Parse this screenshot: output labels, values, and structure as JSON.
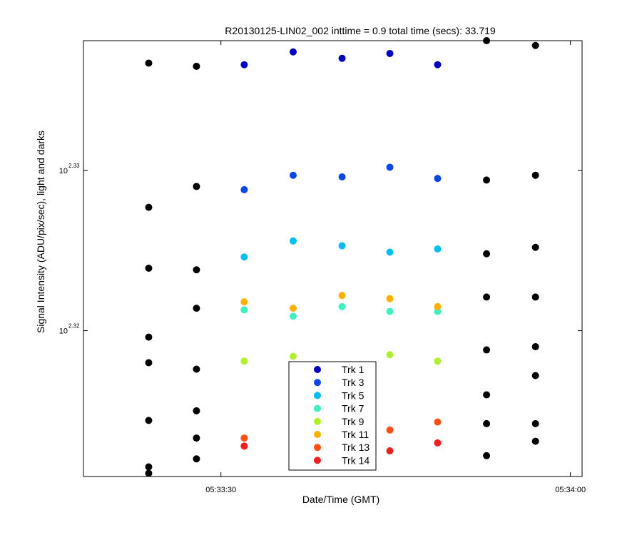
{
  "chart_data": {
    "type": "scatter",
    "title": "R20130125-LIN02_002 inttime = 0.9 total time (secs): 33.719",
    "xlabel": "Date/Time (GMT)",
    "ylabel": "Signal Intensity (ADU/pix/sec), light and darks",
    "x_ticks": [
      {
        "label": "05:33:30",
        "value": 30
      },
      {
        "label": "05:34:00",
        "value": 60
      }
    ],
    "y_ticks": [
      {
        "base": "10",
        "exp": "2.32",
        "value": 2.32
      },
      {
        "base": "10",
        "exp": "2.33",
        "value": 2.33
      }
    ],
    "xlim": [
      18.2,
      61.0
    ],
    "ylim": [
      2.3109,
      2.3381
    ],
    "y_scale": "log",
    "legend_position": "bottom-center",
    "series": [
      {
        "name": "Trk 1",
        "color": "#0000BF",
        "points": [
          [
            32,
            2.3366
          ],
          [
            36.2,
            2.3374
          ],
          [
            40.4,
            2.337
          ],
          [
            44.5,
            2.3373
          ],
          [
            48.6,
            2.3366
          ]
        ]
      },
      {
        "name": "Trk 3",
        "color": "#0F46E6",
        "points": [
          [
            32,
            2.3288
          ],
          [
            36.2,
            2.3297
          ],
          [
            40.4,
            2.3296
          ],
          [
            44.5,
            2.3302
          ],
          [
            48.6,
            2.3295
          ]
        ]
      },
      {
        "name": "Trk 5",
        "color": "#00BFF0",
        "points": [
          [
            32,
            2.3246
          ],
          [
            36.2,
            2.3256
          ],
          [
            40.4,
            2.3253
          ],
          [
            44.5,
            2.3249
          ],
          [
            48.6,
            2.3251
          ]
        ]
      },
      {
        "name": "Trk 7",
        "color": "#40F0C0",
        "points": [
          [
            32,
            2.3213
          ],
          [
            36.2,
            2.3209
          ],
          [
            40.4,
            2.3215
          ],
          [
            44.5,
            2.3212
          ],
          [
            48.6,
            2.3212
          ]
        ]
      },
      {
        "name": "Trk 9",
        "color": "#B0F030",
        "points": [
          [
            32,
            2.3181
          ],
          [
            36.2,
            2.3184
          ],
          [
            44.5,
            2.3185
          ],
          [
            48.6,
            2.3181
          ]
        ]
      },
      {
        "name": "Trk 11",
        "color": "#FFB000",
        "points": [
          [
            32,
            2.3218
          ],
          [
            36.2,
            2.3214
          ],
          [
            40.4,
            2.3222
          ],
          [
            44.5,
            2.322
          ],
          [
            48.6,
            2.3215
          ]
        ]
      },
      {
        "name": "Trk 13",
        "color": "#FF5010",
        "points": [
          [
            32,
            2.3133
          ],
          [
            44.5,
            2.3138
          ],
          [
            48.6,
            2.3143
          ]
        ]
      },
      {
        "name": "Trk 14",
        "color": "#F02020",
        "points": [
          [
            32,
            2.3128
          ],
          [
            44.5,
            2.3125
          ],
          [
            48.6,
            2.313
          ]
        ]
      },
      {
        "color": "#000000",
        "points": [
          [
            23.8,
            2.3367
          ],
          [
            23.8,
            2.3277
          ],
          [
            23.8,
            2.3239
          ],
          [
            23.8,
            2.3196
          ],
          [
            23.8,
            2.318
          ],
          [
            23.8,
            2.3144
          ],
          [
            23.8,
            2.3115
          ],
          [
            23.8,
            2.3111
          ],
          [
            27.9,
            2.3365
          ],
          [
            27.9,
            2.329
          ],
          [
            27.9,
            2.3238
          ],
          [
            27.9,
            2.3214
          ],
          [
            27.9,
            2.3176
          ],
          [
            27.9,
            2.315
          ],
          [
            27.9,
            2.3133
          ],
          [
            27.9,
            2.312
          ],
          [
            52.8,
            2.3381
          ],
          [
            52.8,
            2.3294
          ],
          [
            52.8,
            2.3248
          ],
          [
            52.8,
            2.3221
          ],
          [
            52.8,
            2.3188
          ],
          [
            52.8,
            2.316
          ],
          [
            52.8,
            2.3142
          ],
          [
            52.8,
            2.3122
          ],
          [
            57.0,
            2.3378
          ],
          [
            57.0,
            2.3297
          ],
          [
            57.0,
            2.3252
          ],
          [
            57.0,
            2.3221
          ],
          [
            57.0,
            2.319
          ],
          [
            57.0,
            2.3172
          ],
          [
            57.0,
            2.3142
          ],
          [
            57.0,
            2.3131
          ]
        ]
      }
    ]
  }
}
